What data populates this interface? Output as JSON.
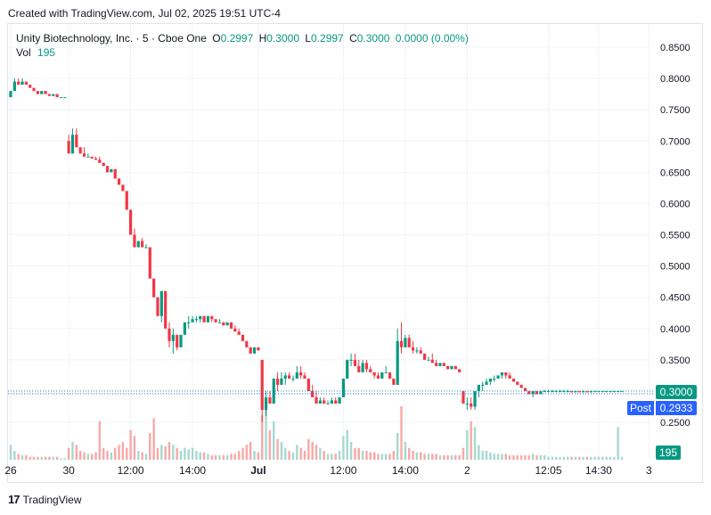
{
  "caption": "Created with TradingView.com, Jul 02, 2025 19:51 UTC-4",
  "legend": {
    "title": "Unity Biotechnology, Inc. · 5 · Cboe One",
    "open_label": "O",
    "open": "0.2997",
    "high_label": "H",
    "high": "0.3000",
    "low_label": "L",
    "low": "0.2997",
    "close_label": "C",
    "close": "0.3000",
    "change": "0.0000 (0.00%)",
    "vol_label": "Vol",
    "vol_value": "195"
  },
  "price_tags": {
    "last": "0.3000",
    "post_label": "Post",
    "post": "0.2933",
    "volume": "195"
  },
  "footer": {
    "brand": "TradingView",
    "mark": "17"
  },
  "colors": {
    "up": "#089981",
    "down": "#f23645",
    "up_vol": "#a8d8cf",
    "down_vol": "#f7a9a7",
    "grid": "#f0f3fa",
    "post_line": "#2962ff"
  },
  "chart_data": {
    "type": "candlestick",
    "title": "Unity Biotechnology, Inc. · 5 · Cboe One",
    "ylim": [
      0.21,
      0.87
    ],
    "y_ticks": [
      "0.8500",
      "0.8000",
      "0.7500",
      "0.7000",
      "0.6500",
      "0.6000",
      "0.5500",
      "0.5000",
      "0.4500",
      "0.4000",
      "0.3500",
      "0.2500"
    ],
    "x_ticks": [
      {
        "label": "26",
        "i": 0
      },
      {
        "label": "30",
        "i": 15
      },
      {
        "label": "12:00",
        "i": 31
      },
      {
        "label": "14:00",
        "i": 47
      },
      {
        "label": "Jul",
        "i": 64
      },
      {
        "label": "12:00",
        "i": 86
      },
      {
        "label": "14:00",
        "i": 102
      },
      {
        "label": "2",
        "i": 118
      },
      {
        "label": "12:05",
        "i": 139
      },
      {
        "label": "14:30",
        "i": 152
      },
      {
        "label": "3",
        "i": 165
      }
    ],
    "last_price": 0.3,
    "post_price": 0.2933,
    "candles": [
      [
        0.77,
        0.78,
        0.77,
        0.78,
        10
      ],
      [
        0.78,
        0.8,
        0.78,
        0.795,
        6
      ],
      [
        0.795,
        0.8,
        0.79,
        0.79,
        4
      ],
      [
        0.79,
        0.8,
        0.79,
        0.795,
        3
      ],
      [
        0.795,
        0.795,
        0.79,
        0.79,
        3
      ],
      [
        0.79,
        0.79,
        0.785,
        0.785,
        2
      ],
      [
        0.785,
        0.785,
        0.78,
        0.78,
        2
      ],
      [
        0.78,
        0.78,
        0.775,
        0.775,
        2
      ],
      [
        0.775,
        0.78,
        0.775,
        0.78,
        2
      ],
      [
        0.78,
        0.78,
        0.775,
        0.775,
        2
      ],
      [
        0.775,
        0.775,
        0.772,
        0.772,
        2
      ],
      [
        0.772,
        0.775,
        0.772,
        0.775,
        2
      ],
      [
        0.775,
        0.775,
        0.77,
        0.77,
        2
      ],
      [
        0.77,
        0.77,
        0.77,
        0.77,
        1
      ],
      [
        0.77,
        0.77,
        0.77,
        0.77,
        1
      ],
      [
        0.7,
        0.71,
        0.68,
        0.68,
        8
      ],
      [
        0.68,
        0.72,
        0.68,
        0.71,
        12
      ],
      [
        0.71,
        0.72,
        0.69,
        0.69,
        10
      ],
      [
        0.69,
        0.69,
        0.68,
        0.68,
        6
      ],
      [
        0.68,
        0.69,
        0.675,
        0.675,
        5
      ],
      [
        0.675,
        0.68,
        0.675,
        0.675,
        4
      ],
      [
        0.675,
        0.675,
        0.672,
        0.672,
        4
      ],
      [
        0.672,
        0.675,
        0.67,
        0.67,
        5
      ],
      [
        0.67,
        0.675,
        0.665,
        0.665,
        26
      ],
      [
        0.665,
        0.665,
        0.66,
        0.66,
        8
      ],
      [
        0.66,
        0.66,
        0.65,
        0.65,
        6
      ],
      [
        0.65,
        0.655,
        0.65,
        0.655,
        5
      ],
      [
        0.655,
        0.655,
        0.64,
        0.64,
        8
      ],
      [
        0.64,
        0.64,
        0.63,
        0.63,
        10
      ],
      [
        0.63,
        0.63,
        0.62,
        0.62,
        12
      ],
      [
        0.62,
        0.62,
        0.59,
        0.59,
        8
      ],
      [
        0.59,
        0.59,
        0.55,
        0.55,
        20
      ],
      [
        0.55,
        0.56,
        0.53,
        0.53,
        16
      ],
      [
        0.53,
        0.54,
        0.53,
        0.54,
        6
      ],
      [
        0.54,
        0.545,
        0.53,
        0.53,
        5
      ],
      [
        0.53,
        0.535,
        0.53,
        0.53,
        4
      ],
      [
        0.53,
        0.53,
        0.48,
        0.48,
        18
      ],
      [
        0.48,
        0.48,
        0.45,
        0.45,
        28
      ],
      [
        0.45,
        0.45,
        0.42,
        0.42,
        8
      ],
      [
        0.42,
        0.46,
        0.41,
        0.46,
        10
      ],
      [
        0.46,
        0.46,
        0.4,
        0.4,
        9
      ],
      [
        0.4,
        0.41,
        0.37,
        0.38,
        12
      ],
      [
        0.38,
        0.4,
        0.36,
        0.39,
        10
      ],
      [
        0.39,
        0.39,
        0.365,
        0.37,
        8
      ],
      [
        0.37,
        0.39,
        0.37,
        0.39,
        6
      ],
      [
        0.39,
        0.41,
        0.39,
        0.41,
        8
      ],
      [
        0.41,
        0.42,
        0.4,
        0.41,
        7
      ],
      [
        0.41,
        0.42,
        0.41,
        0.415,
        8
      ],
      [
        0.415,
        0.42,
        0.41,
        0.415,
        6
      ],
      [
        0.415,
        0.42,
        0.41,
        0.42,
        5
      ],
      [
        0.42,
        0.42,
        0.41,
        0.41,
        5
      ],
      [
        0.41,
        0.42,
        0.41,
        0.42,
        4
      ],
      [
        0.42,
        0.42,
        0.41,
        0.415,
        3
      ],
      [
        0.415,
        0.415,
        0.41,
        0.41,
        3
      ],
      [
        0.41,
        0.415,
        0.41,
        0.41,
        3
      ],
      [
        0.41,
        0.41,
        0.405,
        0.405,
        3
      ],
      [
        0.405,
        0.41,
        0.405,
        0.41,
        3
      ],
      [
        0.41,
        0.41,
        0.4,
        0.4,
        4
      ],
      [
        0.4,
        0.405,
        0.395,
        0.395,
        4
      ],
      [
        0.395,
        0.4,
        0.39,
        0.39,
        6
      ],
      [
        0.39,
        0.39,
        0.38,
        0.38,
        8
      ],
      [
        0.38,
        0.38,
        0.37,
        0.37,
        10
      ],
      [
        0.37,
        0.37,
        0.36,
        0.36,
        12
      ],
      [
        0.36,
        0.37,
        0.36,
        0.37,
        6
      ],
      [
        0.37,
        0.37,
        0.365,
        0.365,
        5
      ],
      [
        0.35,
        0.35,
        0.25,
        0.27,
        30
      ],
      [
        0.27,
        0.3,
        0.26,
        0.29,
        42
      ],
      [
        0.29,
        0.3,
        0.28,
        0.28,
        20
      ],
      [
        0.28,
        0.32,
        0.28,
        0.32,
        26
      ],
      [
        0.32,
        0.33,
        0.3,
        0.31,
        14
      ],
      [
        0.31,
        0.33,
        0.31,
        0.32,
        12
      ],
      [
        0.32,
        0.33,
        0.31,
        0.325,
        8
      ],
      [
        0.325,
        0.33,
        0.32,
        0.32,
        6
      ],
      [
        0.32,
        0.325,
        0.315,
        0.32,
        5
      ],
      [
        0.32,
        0.34,
        0.32,
        0.33,
        10
      ],
      [
        0.33,
        0.34,
        0.32,
        0.325,
        8
      ],
      [
        0.325,
        0.33,
        0.32,
        0.32,
        6
      ],
      [
        0.32,
        0.32,
        0.3,
        0.3,
        14
      ],
      [
        0.3,
        0.31,
        0.29,
        0.29,
        12
      ],
      [
        0.29,
        0.3,
        0.28,
        0.28,
        10
      ],
      [
        0.28,
        0.29,
        0.28,
        0.285,
        8
      ],
      [
        0.285,
        0.29,
        0.28,
        0.28,
        6
      ],
      [
        0.28,
        0.285,
        0.28,
        0.28,
        4
      ],
      [
        0.28,
        0.29,
        0.28,
        0.285,
        4
      ],
      [
        0.285,
        0.29,
        0.28,
        0.28,
        4
      ],
      [
        0.28,
        0.29,
        0.28,
        0.29,
        6
      ],
      [
        0.29,
        0.32,
        0.29,
        0.32,
        16
      ],
      [
        0.32,
        0.35,
        0.32,
        0.35,
        20
      ],
      [
        0.35,
        0.36,
        0.34,
        0.35,
        12
      ],
      [
        0.35,
        0.36,
        0.34,
        0.34,
        8
      ],
      [
        0.34,
        0.35,
        0.33,
        0.33,
        8
      ],
      [
        0.33,
        0.35,
        0.33,
        0.345,
        6
      ],
      [
        0.345,
        0.35,
        0.33,
        0.335,
        6
      ],
      [
        0.335,
        0.34,
        0.33,
        0.33,
        5
      ],
      [
        0.33,
        0.33,
        0.32,
        0.325,
        5
      ],
      [
        0.325,
        0.33,
        0.32,
        0.32,
        4
      ],
      [
        0.32,
        0.33,
        0.32,
        0.33,
        4
      ],
      [
        0.33,
        0.34,
        0.33,
        0.33,
        4
      ],
      [
        0.33,
        0.33,
        0.32,
        0.32,
        4
      ],
      [
        0.32,
        0.32,
        0.31,
        0.31,
        6
      ],
      [
        0.31,
        0.4,
        0.31,
        0.38,
        18
      ],
      [
        0.38,
        0.41,
        0.36,
        0.37,
        36
      ],
      [
        0.37,
        0.39,
        0.37,
        0.385,
        12
      ],
      [
        0.385,
        0.39,
        0.37,
        0.37,
        8
      ],
      [
        0.37,
        0.38,
        0.36,
        0.365,
        6
      ],
      [
        0.365,
        0.37,
        0.36,
        0.365,
        5
      ],
      [
        0.365,
        0.37,
        0.36,
        0.36,
        5
      ],
      [
        0.36,
        0.36,
        0.35,
        0.35,
        4
      ],
      [
        0.35,
        0.355,
        0.35,
        0.35,
        4
      ],
      [
        0.35,
        0.36,
        0.345,
        0.345,
        4
      ],
      [
        0.345,
        0.35,
        0.34,
        0.34,
        4
      ],
      [
        0.34,
        0.345,
        0.34,
        0.345,
        3
      ],
      [
        0.345,
        0.345,
        0.34,
        0.34,
        3
      ],
      [
        0.34,
        0.34,
        0.335,
        0.335,
        3
      ],
      [
        0.335,
        0.34,
        0.335,
        0.34,
        3
      ],
      [
        0.34,
        0.34,
        0.335,
        0.335,
        3
      ],
      [
        0.335,
        0.335,
        0.33,
        0.33,
        3
      ],
      [
        0.3,
        0.3,
        0.28,
        0.28,
        8
      ],
      [
        0.28,
        0.29,
        0.27,
        0.28,
        20
      ],
      [
        0.28,
        0.29,
        0.27,
        0.275,
        26
      ],
      [
        0.275,
        0.3,
        0.27,
        0.3,
        22
      ],
      [
        0.3,
        0.31,
        0.29,
        0.31,
        10
      ],
      [
        0.31,
        0.315,
        0.3,
        0.31,
        6
      ],
      [
        0.31,
        0.32,
        0.31,
        0.315,
        6
      ],
      [
        0.315,
        0.32,
        0.31,
        0.32,
        5
      ],
      [
        0.32,
        0.325,
        0.315,
        0.32,
        4
      ],
      [
        0.32,
        0.325,
        0.32,
        0.325,
        4
      ],
      [
        0.325,
        0.33,
        0.32,
        0.33,
        4
      ],
      [
        0.33,
        0.33,
        0.32,
        0.325,
        4
      ],
      [
        0.325,
        0.33,
        0.32,
        0.32,
        3
      ],
      [
        0.32,
        0.32,
        0.315,
        0.315,
        3
      ],
      [
        0.315,
        0.315,
        0.31,
        0.31,
        3
      ],
      [
        0.31,
        0.31,
        0.305,
        0.305,
        3
      ],
      [
        0.305,
        0.305,
        0.3,
        0.3,
        3
      ],
      [
        0.3,
        0.3,
        0.295,
        0.295,
        3
      ],
      [
        0.295,
        0.3,
        0.29,
        0.3,
        4
      ],
      [
        0.3,
        0.3,
        0.295,
        0.295,
        3
      ],
      [
        0.295,
        0.3,
        0.295,
        0.3,
        3
      ],
      [
        0.3,
        0.302,
        0.298,
        0.3,
        3
      ],
      [
        0.3,
        0.302,
        0.298,
        0.3,
        2
      ],
      [
        0.3,
        0.302,
        0.298,
        0.3,
        2
      ],
      [
        0.3,
        0.302,
        0.298,
        0.3,
        2
      ],
      [
        0.3,
        0.302,
        0.298,
        0.3,
        2
      ],
      [
        0.3,
        0.302,
        0.298,
        0.3,
        2
      ],
      [
        0.3,
        0.302,
        0.298,
        0.3,
        2
      ],
      [
        0.3,
        0.3,
        0.298,
        0.298,
        2
      ],
      [
        0.298,
        0.3,
        0.298,
        0.3,
        2
      ],
      [
        0.3,
        0.3,
        0.298,
        0.298,
        2
      ],
      [
        0.298,
        0.3,
        0.298,
        0.3,
        2
      ],
      [
        0.3,
        0.3,
        0.298,
        0.298,
        2
      ],
      [
        0.298,
        0.3,
        0.298,
        0.3,
        2
      ],
      [
        0.3,
        0.3,
        0.298,
        0.3,
        2
      ],
      [
        0.3,
        0.3,
        0.298,
        0.3,
        2
      ],
      [
        0.3,
        0.3,
        0.298,
        0.3,
        2
      ],
      [
        0.3,
        0.3,
        0.298,
        0.3,
        2
      ],
      [
        0.3,
        0.3,
        0.298,
        0.3,
        2
      ],
      [
        0.3,
        0.3,
        0.298,
        0.3,
        2
      ],
      [
        0.3,
        0.3,
        0.298,
        0.3,
        22
      ],
      [
        0.2997,
        0.3,
        0.2997,
        0.3,
        2
      ]
    ]
  }
}
